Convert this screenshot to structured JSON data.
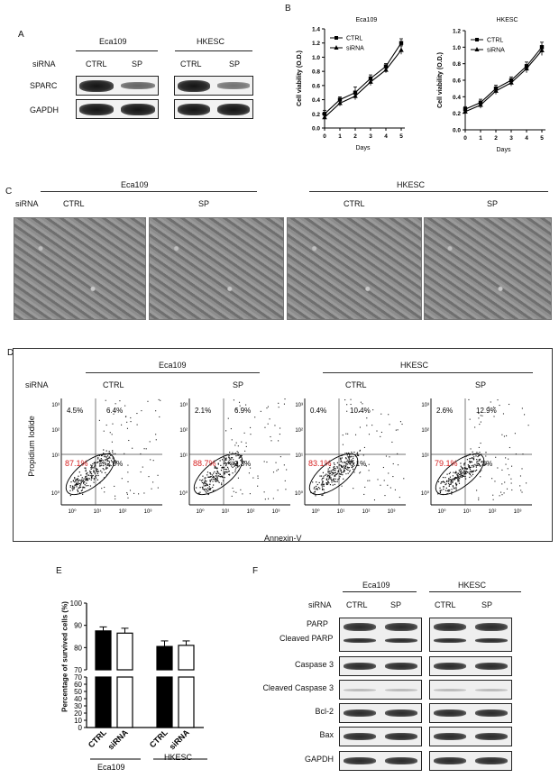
{
  "panels": {
    "A": "A",
    "B": "B",
    "C": "C",
    "D": "D",
    "E": "E",
    "F": "F"
  },
  "panelA": {
    "lines": [
      "Eca109",
      "HKESC"
    ],
    "sirna_label": "siRNA",
    "lanes": [
      "CTRL",
      "SP",
      "CTRL",
      "SP"
    ],
    "rows": [
      {
        "name": "SPARC",
        "intensity": [
          1.0,
          0.45,
          1.0,
          0.35
        ]
      },
      {
        "name": "GAPDH",
        "intensity": [
          1.0,
          1.0,
          1.0,
          1.0
        ]
      }
    ]
  },
  "panelB": {
    "chart_data": [
      {
        "type": "line",
        "title": "Eca109",
        "xlabel": "Days",
        "ylabel": "Cell viability (O.D.)",
        "x": [
          0,
          1,
          2,
          3,
          4,
          5
        ],
        "xlim": [
          0,
          5
        ],
        "ylim": [
          0,
          1.4
        ],
        "yticks": [
          "0.0",
          "0.2",
          "0.4",
          "0.6",
          "0.8",
          "1.0",
          "1.2",
          "1.4"
        ],
        "xticks": [
          "0",
          "1",
          "2",
          "3",
          "4",
          "5"
        ],
        "legend": "top-left",
        "series": [
          {
            "name": "CTRL",
            "marker": "square",
            "values": [
              0.2,
              0.4,
              0.5,
              0.7,
              0.87,
              1.2
            ],
            "err": [
              0.05,
              0.04,
              0.08,
              0.05,
              0.04,
              0.06
            ]
          },
          {
            "name": "siRNA",
            "marker": "triangle",
            "values": [
              0.15,
              0.35,
              0.45,
              0.65,
              0.82,
              1.1
            ],
            "err": [
              0.05,
              0.04,
              0.05,
              0.05,
              0.04,
              0.06
            ]
          }
        ]
      },
      {
        "type": "line",
        "title": "HKESC",
        "xlabel": "Days",
        "ylabel": "Cell viability (O.D.)",
        "x": [
          0,
          1,
          2,
          3,
          4,
          5
        ],
        "xlim": [
          0,
          5
        ],
        "ylim": [
          0,
          1.2
        ],
        "yticks": [
          "0.0",
          "0.2",
          "0.4",
          "0.6",
          "0.8",
          "1.0",
          "1.2"
        ],
        "xticks": [
          "0",
          "1",
          "2",
          "3",
          "4",
          "5"
        ],
        "legend": "top-left",
        "series": [
          {
            "name": "CTRL",
            "marker": "square",
            "values": [
              0.25,
              0.33,
              0.5,
              0.6,
              0.77,
              1.0
            ],
            "err": [
              0.03,
              0.04,
              0.04,
              0.04,
              0.05,
              0.06
            ]
          },
          {
            "name": "siRNA",
            "marker": "triangle",
            "values": [
              0.22,
              0.3,
              0.47,
              0.57,
              0.74,
              0.96
            ],
            "err": [
              0.03,
              0.04,
              0.04,
              0.04,
              0.05,
              0.06
            ]
          }
        ]
      }
    ]
  },
  "panelC": {
    "lines": [
      "Eca109",
      "HKESC"
    ],
    "sirna_label": "siRNA",
    "conditions": [
      "CTRL",
      "SP",
      "CTRL",
      "SP"
    ]
  },
  "panelD": {
    "lines": [
      "Eca109",
      "HKESC"
    ],
    "sirna_label": "siRNA",
    "conditions": [
      "CTRL",
      "SP",
      "CTRL",
      "SP"
    ],
    "ylabel": "Propidium Iodide",
    "xlabel": "Annexin-V",
    "ticks": [
      "10⁰",
      "10¹",
      "10²",
      "10³"
    ],
    "quadrants": [
      {
        "ul": "4.5%",
        "ur": "6.4%",
        "ll": "87.1%",
        "lr": "2.0%"
      },
      {
        "ul": "2.1%",
        "ur": "6.9%",
        "ll": "88.7%",
        "lr": "2.3%"
      },
      {
        "ul": "0.4%",
        "ur": "10.4%",
        "ll": "83.1%",
        "lr": "6.1%"
      },
      {
        "ul": "2.6%",
        "ur": "12.9%",
        "ll": "79.1%",
        "lr": "5.3%"
      }
    ],
    "highlight_color": "#d62020"
  },
  "panelE": {
    "chart_data": {
      "type": "bar",
      "ylabel": "Percentage of survived cells (%)",
      "categories": [
        "CTRL",
        "siRNA",
        "CTRL",
        "siRNA"
      ],
      "groups": [
        "Eca109",
        "HKESC"
      ],
      "values": [
        87.5,
        86.5,
        80.5,
        81.0
      ],
      "err": [
        1.8,
        2.2,
        2.5,
        2.0
      ],
      "fills": [
        "black",
        "white",
        "black",
        "white"
      ],
      "ylim": [
        0,
        100
      ],
      "axis_break": [
        70,
        70
      ],
      "upper_yticks": [
        "70",
        "80",
        "90",
        "100"
      ],
      "lower_yticks": [
        "0",
        "10",
        "20",
        "30",
        "40",
        "50",
        "60",
        "70"
      ]
    }
  },
  "panelF": {
    "lines": [
      "Eca109",
      "HKESC"
    ],
    "sirna_label": "siRNA",
    "lanes": [
      "CTRL",
      "SP",
      "CTRL",
      "SP"
    ],
    "rows": [
      {
        "name": "PARP",
        "sub": "Cleaved PARP"
      },
      {
        "name": "Caspase 3",
        "sub": ""
      },
      {
        "name": "Cleaved Caspase 3",
        "sub": ""
      },
      {
        "name": "Bcl-2",
        "sub": ""
      },
      {
        "name": "Bax",
        "sub": ""
      },
      {
        "name": "GAPDH",
        "sub": ""
      }
    ]
  }
}
